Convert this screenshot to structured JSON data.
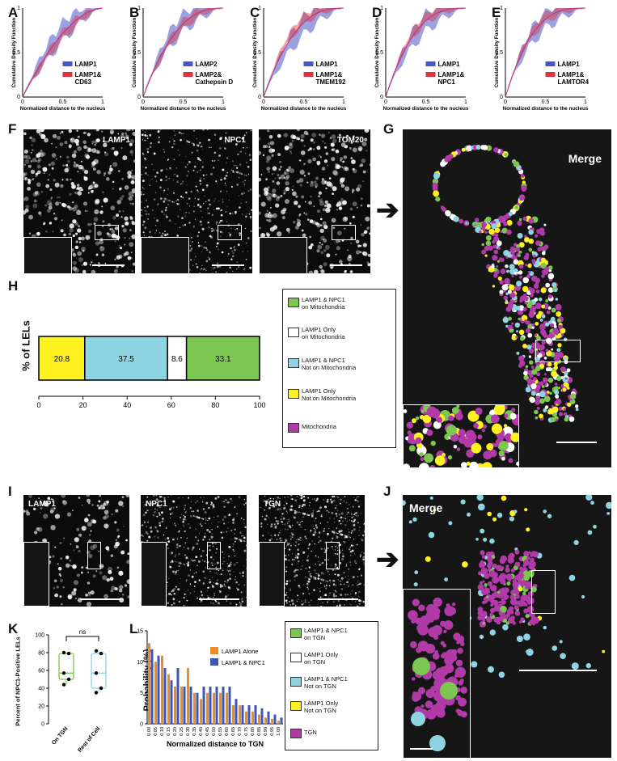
{
  "colors": {
    "blue": "#4a55c4",
    "red": "#e0303e",
    "yellow": "#fff21e",
    "cyan": "#8fd4e3",
    "green": "#7bc751",
    "magenta": "#b13aa8",
    "orange": "#f08a2e",
    "barblue": "#3e55b6"
  },
  "panels": {
    "A": "A",
    "B": "B",
    "C": "C",
    "D": "D",
    "E": "E",
    "F": "F",
    "G": "G",
    "H": "H",
    "I": "I",
    "J": "J",
    "K": "K",
    "L": "L"
  },
  "cdf": {
    "ylabel": "Cumulative Density Function",
    "xlabel": "Normalized distance to the nucleus",
    "ticks_x": [
      "0",
      "0.5",
      "1"
    ],
    "ticks_y": [
      "0",
      "0.5",
      "1"
    ],
    "A": {
      "s1": "LAMP1",
      "s2a": "LAMP1&",
      "s2b": "CD63"
    },
    "B": {
      "s1": "LAMP2",
      "s2a": "LAMP2&",
      "s2b": "Cathepsin D"
    },
    "C": {
      "s1": "LAMP1",
      "s2a": "LAMP1&",
      "s2b": "TMEM192"
    },
    "D": {
      "s1": "LAMP1",
      "s2a": "LAMP1&",
      "s2b": "NPC1"
    },
    "E": {
      "s1": "LAMP1",
      "s2a": "LAMP1&",
      "s2b": "LAMTOR4"
    }
  },
  "F": {
    "c1": "LAMP1",
    "c2": "NPC1",
    "c3": "TOM20"
  },
  "G": {
    "title": "Merge"
  },
  "H": {
    "ylabel": "% of LELs",
    "ticks": [
      "0",
      "20",
      "40",
      "60",
      "80",
      "100"
    ],
    "values": [
      "20.8",
      "37.5",
      "8.6",
      "33.1"
    ],
    "legend": [
      {
        "l1": "LAMP1 & NPC1",
        "l2": "on Mitochondria"
      },
      {
        "l1": "LAMP1 Only",
        "l2": "on Mitochondria"
      },
      {
        "l1": "LAMP1 & NPC1",
        "l2": "Not on Mitochondria"
      },
      {
        "l1": "LAMP1 Only",
        "l2": "Not on Mitochondria"
      },
      {
        "l1": "Mitochondria",
        "l2": ""
      }
    ]
  },
  "I": {
    "c1": "LAMP1",
    "c2": "NPC1",
    "c3": "TGN"
  },
  "J": {
    "title": "Merge"
  },
  "K": {
    "ylabel": "Percent of NPC1-Positive LELs",
    "ticks": [
      "0",
      "20",
      "40",
      "60",
      "80",
      "100"
    ],
    "ns": "ns",
    "cats": [
      "On TGN",
      "Rest of Cell"
    ]
  },
  "L": {
    "ylabel": "Probability (%)",
    "xlabel": "Normalized distance to TGN",
    "ticks_y": [
      "0",
      "5",
      "10",
      "15"
    ],
    "legend1": "LAMP1 Alone",
    "legend2": "LAMP1 & NPC1",
    "legend": [
      {
        "l1": "LAMP1 & NPC1",
        "l2": "on TGN"
      },
      {
        "l1": "LAMP1 Only",
        "l2": "on TGN"
      },
      {
        "l1": "LAMP1 & NPC1",
        "l2": "Not on TGN"
      },
      {
        "l1": "LAMP1 Only",
        "l2": "Not on TGN"
      },
      {
        "l1": "TGN",
        "l2": ""
      }
    ],
    "xticks": [
      "0.00",
      "0.05",
      "0.10",
      "0.15",
      "0.20",
      "0.25",
      "0.30",
      "0.35",
      "0.40",
      "0.45",
      "0.50",
      "0.55",
      "0.60",
      "0.65",
      "0.70",
      "0.75",
      "0.80",
      "0.85",
      "0.90",
      "0.95",
      "1.00"
    ]
  },
  "chart_data": [
    {
      "type": "bar",
      "title": "",
      "xlabel": "",
      "ylabel": "% of LELs",
      "categories": [
        "LAMP1 Only Not on Mitochondria",
        "LAMP1 & NPC1 Not on Mitochondria",
        "LAMP1 Only on Mitochondria",
        "LAMP1 & NPC1 on Mitochondria"
      ],
      "values": [
        20.8,
        37.5,
        8.6,
        33.1
      ],
      "xlim": [
        0,
        100
      ]
    },
    {
      "type": "bar",
      "title": "",
      "xlabel": "Normalized distance to TGN",
      "ylabel": "Probability (%)",
      "ylim": [
        0,
        15
      ],
      "categories": [
        "0.00",
        "0.05",
        "0.10",
        "0.15",
        "0.20",
        "0.25",
        "0.30",
        "0.35",
        "0.40",
        "0.45",
        "0.50",
        "0.55",
        "0.60",
        "0.65",
        "0.70",
        "0.75",
        "0.80",
        "0.85",
        "0.90",
        "0.95",
        "1.00"
      ],
      "series": [
        {
          "name": "LAMP1 Alone",
          "values": [
            13,
            10,
            11,
            8,
            6,
            6,
            9,
            5,
            4,
            5,
            5,
            5,
            5,
            3,
            3,
            2,
            2,
            1.5,
            1,
            0.8,
            0.5
          ]
        },
        {
          "name": "LAMP1 & NPC1",
          "values": [
            12,
            11,
            9,
            7,
            9,
            6,
            6,
            5,
            6,
            6,
            6,
            6,
            6,
            4,
            3,
            3,
            3,
            2.5,
            2,
            1.5,
            1
          ]
        }
      ]
    },
    {
      "type": "scatter",
      "title": "",
      "ylabel": "Percent of NPC1-Positive LELs",
      "categories": [
        "On TGN",
        "Rest of Cell"
      ],
      "ylim": [
        0,
        100
      ],
      "series": [
        {
          "name": "On TGN",
          "values": [
            80,
            79,
            57,
            50,
            44
          ]
        },
        {
          "name": "Rest of Cell",
          "values": [
            82,
            79,
            57,
            40,
            35
          ]
        }
      ]
    }
  ]
}
